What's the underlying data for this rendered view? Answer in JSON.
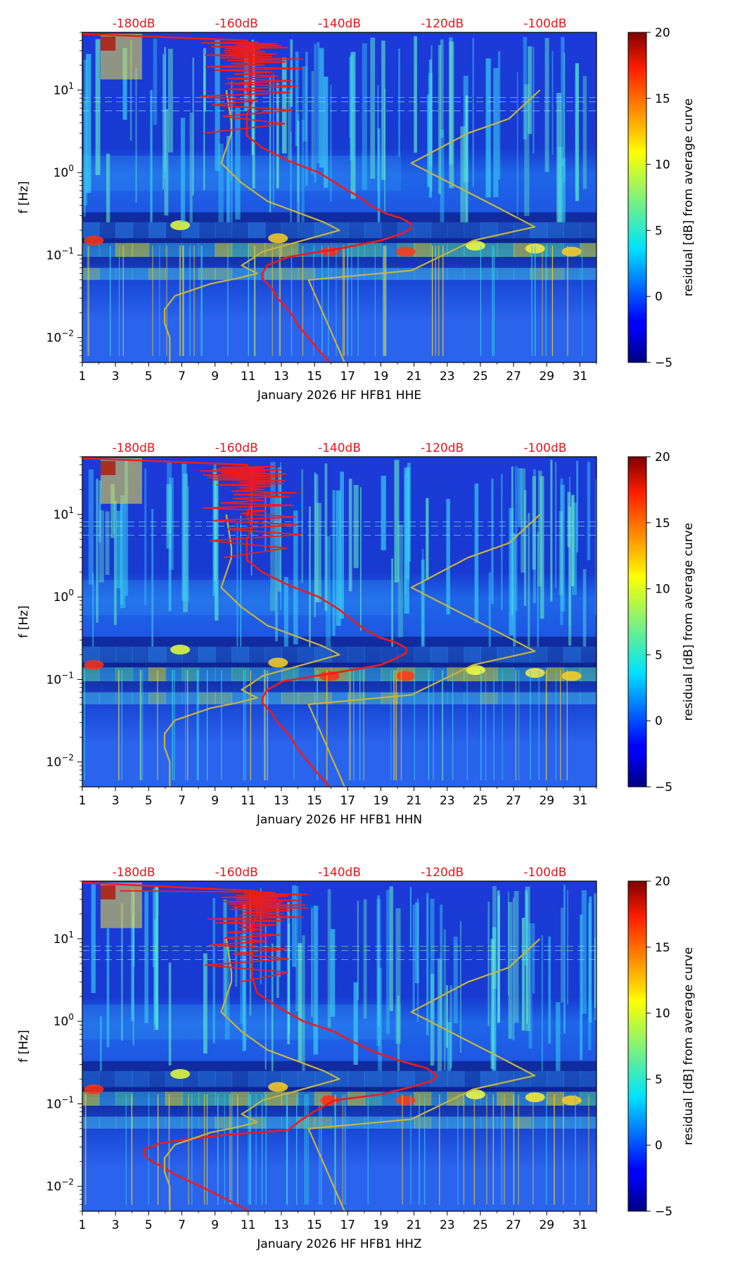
{
  "colors": {
    "db_label": "#e8141b",
    "red_curve": "#ee1b1b",
    "nlnm_curve": "#c8b53a",
    "frame": "#000000"
  },
  "shared": {
    "x_ticks": [
      "1",
      "3",
      "5",
      "7",
      "9",
      "11",
      "13",
      "15",
      "17",
      "19",
      "21",
      "23",
      "25",
      "27",
      "29",
      "31"
    ],
    "x_tick_values": [
      1,
      3,
      5,
      7,
      9,
      11,
      13,
      15,
      17,
      19,
      21,
      23,
      25,
      27,
      29,
      31
    ],
    "db_ticks": [
      "-180dB",
      "-160dB",
      "-140dB",
      "-120dB",
      "-100dB"
    ],
    "db_tick_values": [
      -180,
      -160,
      -140,
      -120,
      -100
    ],
    "ylabel": "f [Hz]",
    "colorbar_label": "residual [dB] from average curve",
    "colorbar_ticks": [
      "20",
      "15",
      "10",
      "5",
      "0",
      "−5"
    ],
    "colorbar_tick_values": [
      20,
      15,
      10,
      5,
      0,
      -5
    ],
    "colormap": "jet"
  },
  "chart_data": [
    {
      "type": "heatmap",
      "title": "",
      "xlabel": "January 2026 HF HFB1  HHE",
      "ylabel": "f [Hz]",
      "x_range": [
        1,
        32
      ],
      "y_range": [
        0.005,
        50
      ],
      "y_scale": "log",
      "y_ticks": [
        0.01,
        0.1,
        1,
        10
      ],
      "top_axis_range_db": [
        -190,
        -90
      ],
      "colorbar_range": [
        -5,
        20
      ],
      "series": [
        {
          "name": "station PSD (top axis, dB)",
          "color": "red",
          "points": [
            [
              -142,
              0.0051
            ],
            [
              -144,
              0.007
            ],
            [
              -146,
              0.01
            ],
            [
              -148,
              0.014
            ],
            [
              -149,
              0.018
            ],
            [
              -150,
              0.022
            ],
            [
              -152,
              0.03
            ],
            [
              -153,
              0.038
            ],
            [
              -154,
              0.045
            ],
            [
              -155,
              0.052
            ],
            [
              -155,
              0.06
            ],
            [
              -154,
              0.075
            ],
            [
              -150,
              0.095
            ],
            [
              -140,
              0.12
            ],
            [
              -132,
              0.15
            ],
            [
              -128,
              0.18
            ],
            [
              -126,
              0.21
            ],
            [
              -126,
              0.24
            ],
            [
              -128,
              0.28
            ],
            [
              -131,
              0.32
            ],
            [
              -134,
              0.4
            ],
            [
              -136,
              0.5
            ],
            [
              -140,
              0.7
            ],
            [
              -144,
              1.0
            ],
            [
              -150,
              1.4
            ],
            [
              -155,
              2.0
            ],
            [
              -158,
              2.8
            ],
            [
              -158,
              3.5
            ],
            [
              -158,
              5
            ],
            [
              -157,
              7
            ],
            [
              -158,
              10
            ],
            [
              -157,
              14
            ],
            [
              -157,
              20
            ],
            [
              -157,
              30
            ],
            [
              -158,
              40
            ],
            [
              -190,
              48
            ]
          ]
        },
        {
          "name": "noise model (top axis, dB)",
          "color": "olive",
          "points": [
            [
              -173,
              0.005
            ],
            [
              -173,
              0.01
            ],
            [
              -174,
              0.015
            ],
            [
              -174,
              0.022
            ],
            [
              -172,
              0.032
            ],
            [
              -165,
              0.045
            ],
            [
              -160,
              0.052
            ],
            [
              -156,
              0.06
            ],
            [
              -159,
              0.075
            ],
            [
              -157,
              0.09
            ],
            [
              -155,
              0.11
            ],
            [
              -140,
              0.2
            ],
            [
              -143,
              0.25
            ],
            [
              -154,
              0.45
            ],
            [
              -159,
              0.75
            ],
            [
              -163,
              1.3
            ],
            [
              -161,
              3.0
            ],
            [
              -161,
              4
            ],
            [
              -162,
              10
            ]
          ]
        },
        {
          "name": "high noise model (top axis, dB)",
          "color": "olive",
          "points": [
            [
              -139,
              0.005
            ],
            [
              -146,
              0.05
            ],
            [
              -126,
              0.065
            ],
            [
              -114,
              0.15
            ],
            [
              -102,
              0.22
            ],
            [
              -110,
              0.4
            ],
            [
              -126,
              1.3
            ],
            [
              -115,
              3.0
            ],
            [
              -107,
              4.5
            ],
            [
              -101,
              10
            ]
          ]
        }
      ]
    },
    {
      "type": "heatmap",
      "title": "",
      "xlabel": "January 2026 HF HFB1  HHN",
      "ylabel": "f [Hz]",
      "x_range": [
        1,
        32
      ],
      "y_range": [
        0.005,
        50
      ],
      "y_scale": "log",
      "y_ticks": [
        0.01,
        0.1,
        1,
        10
      ],
      "top_axis_range_db": [
        -190,
        -90
      ],
      "colorbar_range": [
        -5,
        20
      ],
      "series": [
        {
          "name": "station PSD (top axis, dB)",
          "color": "red",
          "points": [
            [
              -142,
              0.0051
            ],
            [
              -144,
              0.007
            ],
            [
              -146,
              0.01
            ],
            [
              -148,
              0.014
            ],
            [
              -149,
              0.018
            ],
            [
              -150,
              0.022
            ],
            [
              -152,
              0.03
            ],
            [
              -153,
              0.038
            ],
            [
              -154,
              0.045
            ],
            [
              -155,
              0.052
            ],
            [
              -155,
              0.06
            ],
            [
              -154,
              0.075
            ],
            [
              -151,
              0.095
            ],
            [
              -141,
              0.12
            ],
            [
              -132,
              0.15
            ],
            [
              -129,
              0.18
            ],
            [
              -127,
              0.21
            ],
            [
              -127,
              0.24
            ],
            [
              -129,
              0.28
            ],
            [
              -132,
              0.32
            ],
            [
              -135,
              0.4
            ],
            [
              -137,
              0.5
            ],
            [
              -140,
              0.7
            ],
            [
              -144,
              1.0
            ],
            [
              -150,
              1.4
            ],
            [
              -155,
              2.0
            ],
            [
              -158,
              2.8
            ],
            [
              -158,
              3.5
            ],
            [
              -158,
              5
            ],
            [
              -157,
              7
            ],
            [
              -158,
              10
            ],
            [
              -157,
              14
            ],
            [
              -157,
              20
            ],
            [
              -157,
              30
            ],
            [
              -158,
              40
            ],
            [
              -190,
              48
            ]
          ]
        },
        {
          "name": "noise model (top axis, dB)",
          "color": "olive",
          "points": [
            [
              -173,
              0.005
            ],
            [
              -173,
              0.01
            ],
            [
              -174,
              0.015
            ],
            [
              -174,
              0.022
            ],
            [
              -172,
              0.032
            ],
            [
              -165,
              0.045
            ],
            [
              -160,
              0.052
            ],
            [
              -156,
              0.06
            ],
            [
              -159,
              0.075
            ],
            [
              -157,
              0.09
            ],
            [
              -155,
              0.11
            ],
            [
              -140,
              0.2
            ],
            [
              -143,
              0.25
            ],
            [
              -154,
              0.45
            ],
            [
              -159,
              0.75
            ],
            [
              -163,
              1.3
            ],
            [
              -161,
              3.0
            ],
            [
              -161,
              4
            ],
            [
              -162,
              10
            ]
          ]
        },
        {
          "name": "high noise model (top axis, dB)",
          "color": "olive",
          "points": [
            [
              -139,
              0.005
            ],
            [
              -146,
              0.05
            ],
            [
              -126,
              0.065
            ],
            [
              -114,
              0.15
            ],
            [
              -102,
              0.22
            ],
            [
              -110,
              0.4
            ],
            [
              -126,
              1.3
            ],
            [
              -115,
              3.0
            ],
            [
              -107,
              4.5
            ],
            [
              -101,
              10
            ]
          ]
        }
      ]
    },
    {
      "type": "heatmap",
      "title": "",
      "xlabel": "January 2026 HF HFB1  HHZ",
      "ylabel": "f [Hz]",
      "x_range": [
        1,
        32
      ],
      "y_range": [
        0.005,
        50
      ],
      "y_scale": "log",
      "y_ticks": [
        0.01,
        0.1,
        1,
        10
      ],
      "top_axis_range_db": [
        -190,
        -90
      ],
      "colorbar_range": [
        -5,
        20
      ],
      "series": [
        {
          "name": "station PSD (top axis, dB)",
          "color": "red",
          "points": [
            [
              -158,
              0.0052
            ],
            [
              -162,
              0.007
            ],
            [
              -167,
              0.01
            ],
            [
              -172,
              0.014
            ],
            [
              -175,
              0.018
            ],
            [
              -177,
              0.021
            ],
            [
              -178,
              0.024
            ],
            [
              -178,
              0.028
            ],
            [
              -175,
              0.033
            ],
            [
              -170,
              0.037
            ],
            [
              -162,
              0.042
            ],
            [
              -150,
              0.048
            ],
            [
              -148,
              0.06
            ],
            [
              -145,
              0.08
            ],
            [
              -141,
              0.11
            ],
            [
              -132,
              0.13
            ],
            [
              -126,
              0.16
            ],
            [
              -122,
              0.19
            ],
            [
              -121,
              0.22
            ],
            [
              -123,
              0.27
            ],
            [
              -128,
              0.33
            ],
            [
              -133,
              0.42
            ],
            [
              -137,
              0.55
            ],
            [
              -141,
              0.75
            ],
            [
              -147,
              1.0
            ],
            [
              -152,
              1.5
            ],
            [
              -156,
              2.2
            ],
            [
              -157,
              3.5
            ],
            [
              -157,
              5
            ],
            [
              -157,
              7
            ],
            [
              -157,
              10
            ],
            [
              -157,
              14
            ],
            [
              -156,
              20
            ],
            [
              -156,
              28
            ],
            [
              -156,
              38
            ],
            [
              -190,
              48
            ]
          ]
        },
        {
          "name": "noise model (top axis, dB)",
          "color": "olive",
          "points": [
            [
              -173,
              0.005
            ],
            [
              -173,
              0.01
            ],
            [
              -174,
              0.015
            ],
            [
              -174,
              0.022
            ],
            [
              -172,
              0.032
            ],
            [
              -165,
              0.045
            ],
            [
              -160,
              0.052
            ],
            [
              -156,
              0.06
            ],
            [
              -159,
              0.075
            ],
            [
              -157,
              0.09
            ],
            [
              -155,
              0.11
            ],
            [
              -140,
              0.2
            ],
            [
              -143,
              0.25
            ],
            [
              -154,
              0.45
            ],
            [
              -159,
              0.75
            ],
            [
              -163,
              1.3
            ],
            [
              -161,
              3.0
            ],
            [
              -161,
              4
            ],
            [
              -162,
              10
            ]
          ]
        },
        {
          "name": "high noise model (top axis, dB)",
          "color": "olive",
          "points": [
            [
              -139,
              0.005
            ],
            [
              -146,
              0.05
            ],
            [
              -126,
              0.065
            ],
            [
              -114,
              0.15
            ],
            [
              -102,
              0.22
            ],
            [
              -110,
              0.4
            ],
            [
              -126,
              1.3
            ],
            [
              -115,
              3.0
            ],
            [
              -107,
              4.5
            ],
            [
              -101,
              10
            ]
          ]
        }
      ]
    }
  ]
}
